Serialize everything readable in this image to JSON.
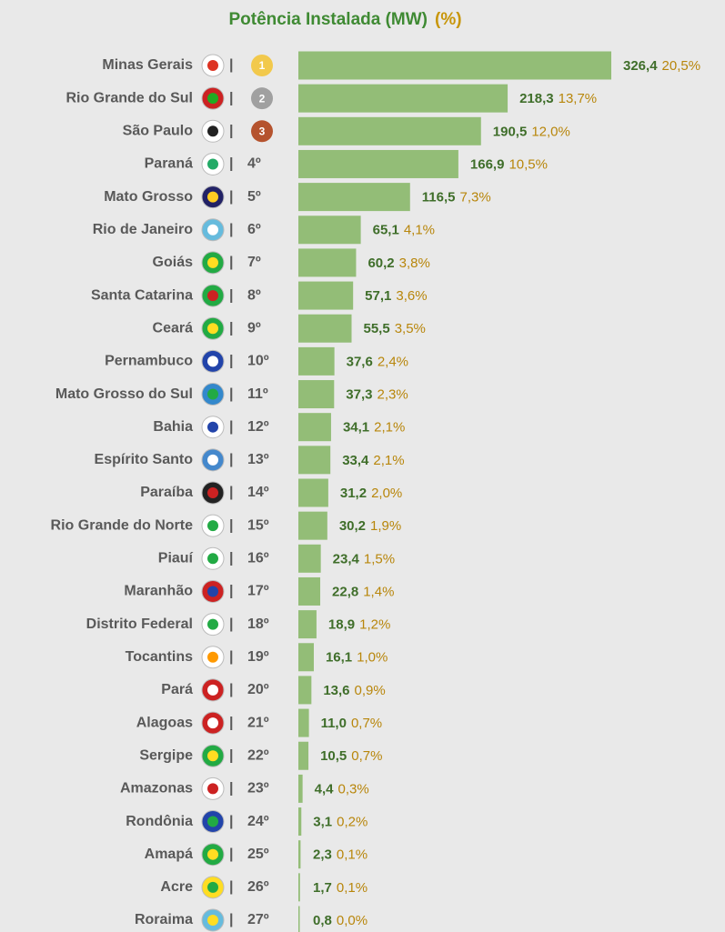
{
  "chart_data": {
    "type": "bar",
    "orientation": "horizontal",
    "categories": [
      "Minas Gerais",
      "Rio Grande do Sul",
      "São Paulo",
      "Paraná",
      "Mato Grosso",
      "Rio de Janeiro",
      "Goiás",
      "Santa Catarina",
      "Ceará",
      "Pernambuco",
      "Mato Grosso do Sul",
      "Bahia",
      "Espírito Santo",
      "Paraíba",
      "Rio Grande do Norte",
      "Piauí",
      "Maranhão",
      "Distrito Federal",
      "Tocantins",
      "Pará",
      "Alagoas",
      "Sergipe",
      "Amazonas",
      "Rondônia",
      "Amapá",
      "Acre",
      "Roraima"
    ],
    "ranks": [
      "1",
      "2",
      "3",
      "4º",
      "5º",
      "6º",
      "7º",
      "8º",
      "9º",
      "10º",
      "11º",
      "12º",
      "13º",
      "14º",
      "15º",
      "16º",
      "17º",
      "18º",
      "19º",
      "20º",
      "21º",
      "22º",
      "23º",
      "24º",
      "25º",
      "26º",
      "27º"
    ],
    "separator": "|",
    "series": [
      {
        "name": "Potência Instalada (MW)",
        "color": "#93bd77",
        "values": [
          326.4,
          218.3,
          190.5,
          166.9,
          116.5,
          65.1,
          60.2,
          57.1,
          55.5,
          37.6,
          37.3,
          34.1,
          33.4,
          31.2,
          30.2,
          23.4,
          22.8,
          18.9,
          16.1,
          13.6,
          11.0,
          10.5,
          4.4,
          3.1,
          2.3,
          1.7,
          0.8
        ],
        "value_labels": [
          "326,4",
          "218,3",
          "190,5",
          "166,9",
          "116,5",
          "65,1",
          "60,2",
          "57,1",
          "55,5",
          "37,6",
          "37,3",
          "34,1",
          "33,4",
          "31,2",
          "30,2",
          "23,4",
          "22,8",
          "18,9",
          "16,1",
          "13,6",
          "11,0",
          "10,5",
          "4,4",
          "3,1",
          "2,3",
          "1,7",
          "0,8"
        ]
      },
      {
        "name": "(%)",
        "color": "#b8860b",
        "values": [
          20.5,
          13.7,
          12.0,
          10.5,
          7.3,
          4.1,
          3.8,
          3.6,
          3.5,
          2.4,
          2.3,
          2.1,
          2.1,
          2.0,
          1.9,
          1.5,
          1.4,
          1.2,
          1.0,
          0.9,
          0.7,
          0.7,
          0.3,
          0.2,
          0.1,
          0.1,
          0.0
        ],
        "value_labels": [
          "20,5%",
          "13,7%",
          "12,0%",
          "10,5%",
          "7,3%",
          "4,1%",
          "3,8%",
          "3,6%",
          "3,5%",
          "2,4%",
          "2,3%",
          "2,1%",
          "2,1%",
          "2,0%",
          "1,9%",
          "1,5%",
          "1,4%",
          "1,2%",
          "1,0%",
          "0,9%",
          "0,7%",
          "0,7%",
          "0,3%",
          "0,2%",
          "0,1%",
          "0,1%",
          "0,0%"
        ]
      }
    ]
  }
}
